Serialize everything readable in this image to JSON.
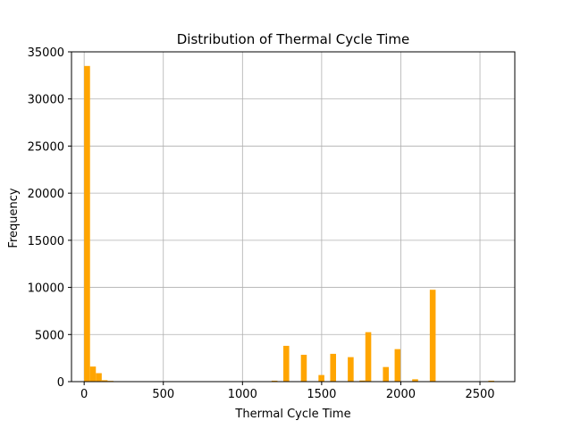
{
  "chart_data": {
    "type": "bar",
    "subtype": "histogram",
    "title": "Distribution of Thermal Cycle Time",
    "xlabel": "Thermal Cycle Time",
    "ylabel": "Frequency",
    "xlim": [
      -80,
      2720
    ],
    "ylim": [
      0,
      35000
    ],
    "xticks": [
      0,
      500,
      1000,
      1500,
      2000,
      2500
    ],
    "yticks": [
      0,
      5000,
      10000,
      15000,
      20000,
      25000,
      30000,
      35000
    ],
    "grid": true,
    "bar_color": "#ffa500",
    "bin_width": 37,
    "bins": [
      {
        "x": 0,
        "value": 33500
      },
      {
        "x": 37,
        "value": 1600
      },
      {
        "x": 74,
        "value": 900
      },
      {
        "x": 111,
        "value": 150
      },
      {
        "x": 148,
        "value": 80
      },
      {
        "x": 1184,
        "value": 100
      },
      {
        "x": 1258,
        "value": 3800
      },
      {
        "x": 1369,
        "value": 2850
      },
      {
        "x": 1480,
        "value": 700
      },
      {
        "x": 1554,
        "value": 2950
      },
      {
        "x": 1665,
        "value": 2600
      },
      {
        "x": 1739,
        "value": 120
      },
      {
        "x": 1776,
        "value": 5250
      },
      {
        "x": 1887,
        "value": 1550
      },
      {
        "x": 1961,
        "value": 3450
      },
      {
        "x": 2072,
        "value": 250
      },
      {
        "x": 2183,
        "value": 9750
      },
      {
        "x": 2553,
        "value": 100
      }
    ]
  }
}
